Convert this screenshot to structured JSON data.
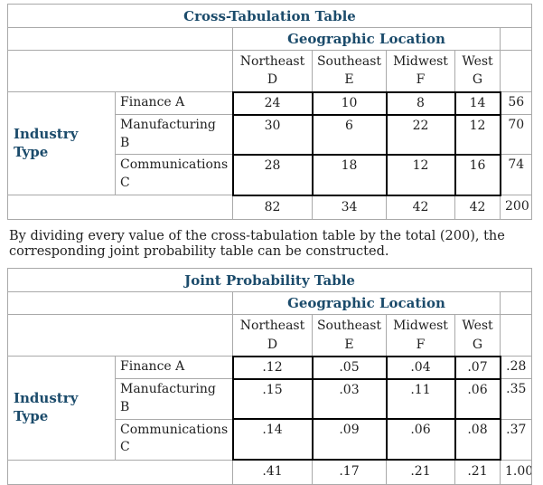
{
  "colors": {
    "heading_blue": "#1b4b6b",
    "body_text": "#212121",
    "thin_border": "#a9a9a9",
    "thick_border": "#000000"
  },
  "cross_tab_table": {
    "title": "Cross-Tabulation Table",
    "column_group_label": "Geographic Location",
    "row_group_label": "Industry Type",
    "columns": [
      {
        "name": "Northeast",
        "code": "D"
      },
      {
        "name": "Southeast",
        "code": "E"
      },
      {
        "name": "Midwest",
        "code": "F"
      },
      {
        "name": "West",
        "code": "G"
      }
    ],
    "rows": [
      {
        "label": "Finance A",
        "values": [
          "24",
          "10",
          "8",
          "14"
        ],
        "row_total": "56"
      },
      {
        "label": "Manufacturing B",
        "values": [
          "30",
          "6",
          "22",
          "12"
        ],
        "row_total": "70"
      },
      {
        "label": "Communications C",
        "values": [
          "28",
          "18",
          "12",
          "16"
        ],
        "row_total": "74"
      }
    ],
    "column_totals": [
      "82",
      "34",
      "42",
      "42"
    ],
    "grand_total": "200"
  },
  "note": {
    "lines": [
      "By dividing every value of the cross-tabulation table by the total (200), the",
      "corresponding joint probability table can be constructed."
    ]
  },
  "joint_probability_table": {
    "title": "Joint Probability Table",
    "column_group_label": "Geographic Location",
    "row_group_label": "Industry Type",
    "columns": [
      {
        "name": "Northeast",
        "code": "D"
      },
      {
        "name": "Southeast",
        "code": "E"
      },
      {
        "name": "Midwest",
        "code": "F"
      },
      {
        "name": "West",
        "code": "G"
      }
    ],
    "rows": [
      {
        "label": "Finance A",
        "values": [
          ".12",
          ".05",
          ".04",
          ".07"
        ],
        "row_total": ".28"
      },
      {
        "label": "Manufacturing B",
        "values": [
          ".15",
          ".03",
          ".11",
          ".06"
        ],
        "row_total": ".35"
      },
      {
        "label": "Communications C",
        "values": [
          ".14",
          ".09",
          ".06",
          ".08"
        ],
        "row_total": ".37"
      }
    ],
    "column_totals": [
      ".41",
      ".17",
      ".21",
      ".21"
    ],
    "grand_total": "1.00"
  }
}
